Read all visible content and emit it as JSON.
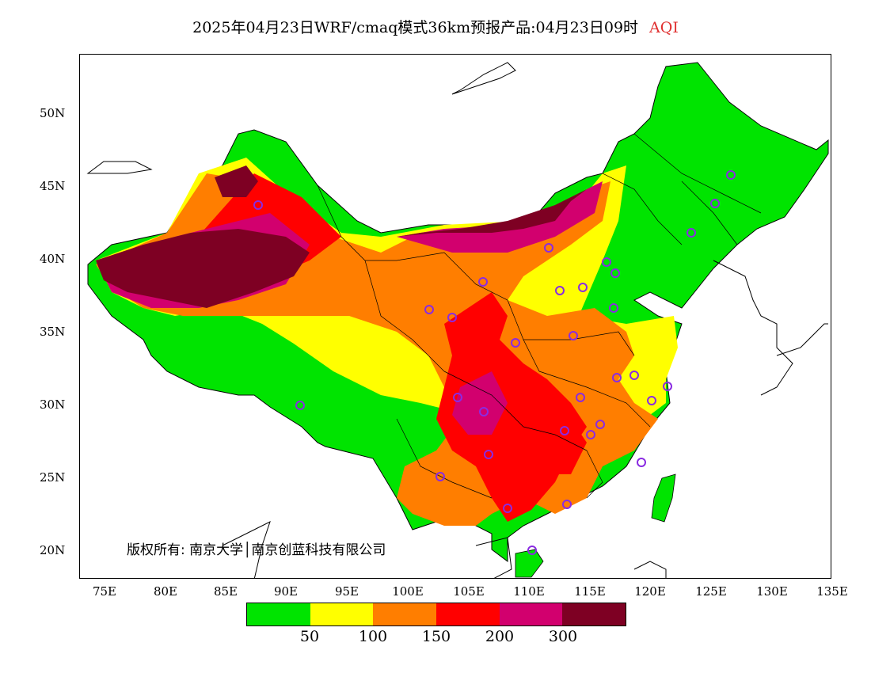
{
  "title": {
    "main": "2025年04月23日WRF/cmaq模式36km预报产品:04月23日09时",
    "variable": "AQI",
    "variable_color": "#e03030"
  },
  "axes": {
    "lat_labels": [
      "50N",
      "45N",
      "40N",
      "35N",
      "30N",
      "25N",
      "20N"
    ],
    "lon_labels": [
      "75E",
      "80E",
      "85E",
      "90E",
      "95E",
      "100E",
      "105E",
      "110E",
      "115E",
      "120E",
      "125E",
      "130E",
      "135E"
    ]
  },
  "copyright": "版权所有: 南京大学│南京创蓝科技有限公司",
  "legend": {
    "colors": [
      "#00e400",
      "#ffff00",
      "#ff7e00",
      "#ff0000",
      "#d2006e",
      "#7e0023"
    ],
    "labels": [
      "50",
      "100",
      "150",
      "200",
      "300"
    ]
  },
  "map": {
    "ocean_color": "#ffffff",
    "border_color": "#000000",
    "station_marker_color": "#8a2be2",
    "dominant_regions": [
      {
        "region": "Northeast",
        "aqi_class": "good"
      },
      {
        "region": "Tibet",
        "aqi_class": "good"
      },
      {
        "region": "Tarim Basin",
        "aqi_class": "hazardous"
      },
      {
        "region": "Sichuan-Chongqing",
        "aqi_class": "very-unhealthy"
      },
      {
        "region": "South-central",
        "aqi_class": "unhealthy"
      }
    ]
  }
}
